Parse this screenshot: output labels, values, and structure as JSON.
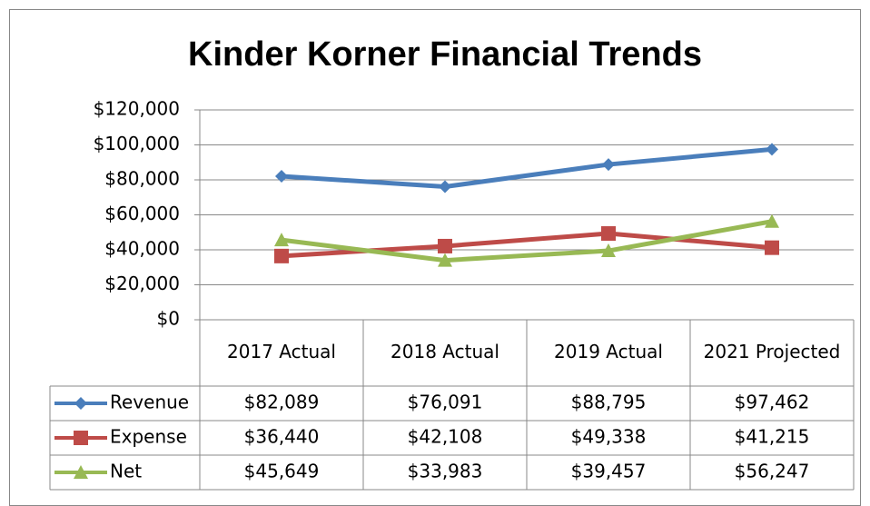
{
  "chart_data": {
    "type": "line",
    "title": "Kinder Korner Financial Trends",
    "categories": [
      "2017 Actual",
      "2018 Actual",
      "2019 Actual",
      "2021 Projected"
    ],
    "series": [
      {
        "name": "Revenue",
        "color": "#4a7ebb",
        "marker": "diamond",
        "values": [
          82089,
          76091,
          88795,
          97462
        ],
        "value_labels": [
          "$82,089",
          "$76,091",
          "$88,795",
          "$97,462"
        ]
      },
      {
        "name": "Expense",
        "color": "#be4b48",
        "marker": "square",
        "values": [
          36440,
          42108,
          49338,
          41215
        ],
        "value_labels": [
          "$36,440",
          "$42,108",
          "$49,338",
          "$41,215"
        ]
      },
      {
        "name": "Net",
        "color": "#98b954",
        "marker": "triangle",
        "values": [
          45649,
          33983,
          39457,
          56247
        ],
        "value_labels": [
          "$45,649",
          "$33,983",
          "$39,457",
          "$56,247"
        ]
      }
    ],
    "ylim": [
      0,
      120000
    ],
    "yticks": [
      {
        "value": 0,
        "label": "$0"
      },
      {
        "value": 20000,
        "label": "$20,000"
      },
      {
        "value": 40000,
        "label": "$40,000"
      },
      {
        "value": 60000,
        "label": "$60,000"
      },
      {
        "value": 80000,
        "label": "$80,000"
      },
      {
        "value": 100000,
        "label": "$100,000"
      },
      {
        "value": 120000,
        "label": "$120,000"
      }
    ],
    "grid": true,
    "data_table": true
  }
}
